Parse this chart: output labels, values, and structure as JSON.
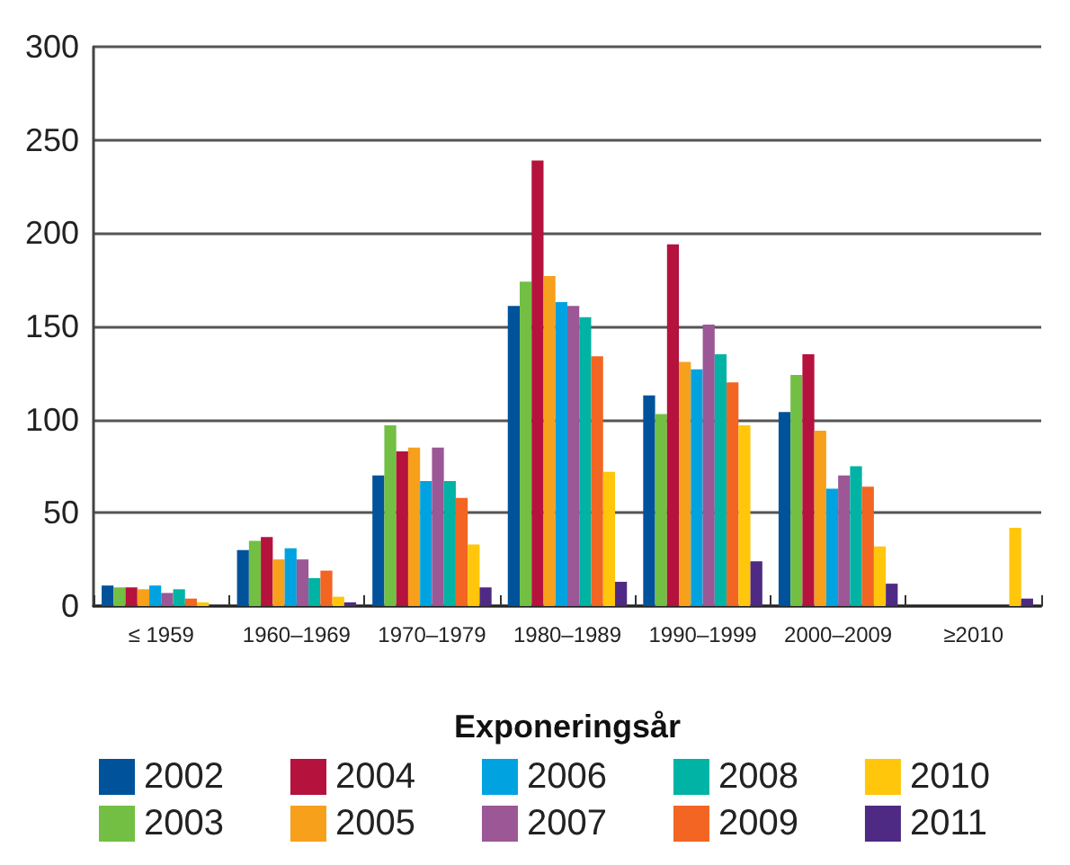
{
  "chart_data": {
    "type": "bar",
    "xlabel": "Exponeringsår",
    "categories": [
      "≤ 1959",
      "1960–1969",
      "1970–1979",
      "1980–1989",
      "1990–1999",
      "2000–2009",
      "≥2010"
    ],
    "series": [
      {
        "name": "2002",
        "color": "#00529b",
        "values": [
          11,
          30,
          70,
          161,
          113,
          104,
          0
        ]
      },
      {
        "name": "2003",
        "color": "#72bf44",
        "values": [
          10,
          35,
          97,
          174,
          103,
          124,
          0
        ]
      },
      {
        "name": "2004",
        "color": "#b5123e",
        "values": [
          10,
          37,
          83,
          239,
          194,
          135,
          0
        ]
      },
      {
        "name": "2005",
        "color": "#f7a01c",
        "values": [
          9,
          25,
          85,
          177,
          131,
          94,
          0
        ]
      },
      {
        "name": "2006",
        "color": "#00a3e0",
        "values": [
          11,
          31,
          67,
          163,
          127,
          63,
          0
        ]
      },
      {
        "name": "2007",
        "color": "#9b5796",
        "values": [
          7,
          25,
          85,
          161,
          151,
          70,
          0
        ]
      },
      {
        "name": "2008",
        "color": "#00b3a4",
        "values": [
          9,
          15,
          67,
          155,
          135,
          75,
          0
        ]
      },
      {
        "name": "2009",
        "color": "#f26522",
        "values": [
          4,
          19,
          58,
          134,
          120,
          64,
          0
        ]
      },
      {
        "name": "2010",
        "color": "#ffc60b",
        "values": [
          2,
          5,
          33,
          72,
          97,
          32,
          42
        ]
      },
      {
        "name": "2011",
        "color": "#4e2a84",
        "values": [
          0,
          2,
          10,
          13,
          24,
          12,
          4
        ]
      }
    ],
    "ylim": [
      0,
      300
    ],
    "yticks": [
      0,
      50,
      100,
      150,
      200,
      250,
      300
    ],
    "grid": "y",
    "legend": "bottom"
  }
}
